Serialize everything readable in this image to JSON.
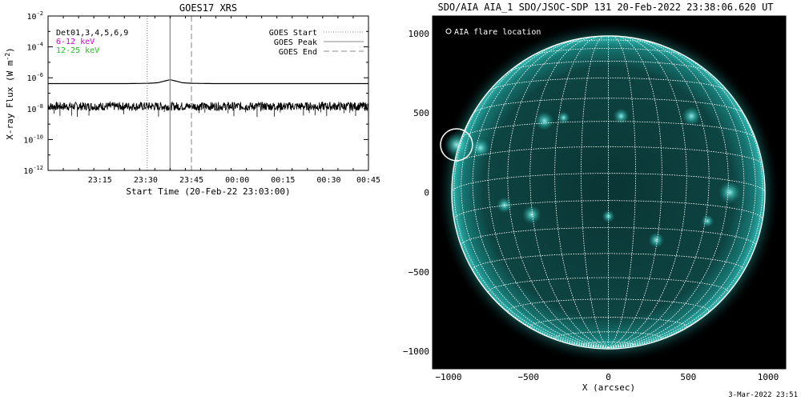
{
  "chart_data": [
    {
      "type": "line",
      "title": "GOES17 XRS",
      "xlabel": "Start Time (20-Feb-22 23:03:00)",
      "ylabel": "X-ray Flux (W m",
      "ylabel_superscript": "-2",
      "ylabel_close": ")",
      "yscale": "log",
      "ylim_exponents": [
        -12,
        -2
      ],
      "y_tick_exponents": [
        -12,
        -10,
        -8,
        -6,
        -4,
        -2
      ],
      "y_tick_base": "10",
      "xlim_minutes": [
        -5,
        100
      ],
      "x_tick_minutes": [
        12,
        27,
        42,
        57,
        72,
        87,
        102
      ],
      "x_tick_labels": [
        "23:15",
        "23:30",
        "23:45",
        "00:00",
        "00:15",
        "00:30",
        "00:45"
      ],
      "channel_legend": [
        {
          "label": "Det01,3,4,5,6,9",
          "color": "#000000"
        },
        {
          "label": "6-12 keV",
          "color": "#d400d4"
        },
        {
          "label": "12-25 keV",
          "color": "#20c020"
        }
      ],
      "marker_legend": [
        {
          "label": "GOES Start",
          "style": "dotted"
        },
        {
          "label": "GOES Peak",
          "style": "solid"
        },
        {
          "label": "GOES End",
          "style": "dashed"
        }
      ],
      "markers_minutes": {
        "start": 27.5,
        "peak": 35.0,
        "end": 42.0
      },
      "series": [
        {
          "name": "",
          "color": "#000000",
          "log10_values": [
            [
              -5,
              -6.38
            ],
            [
              10,
              -6.38
            ],
            [
              20,
              -6.38
            ],
            [
              28,
              -6.36
            ],
            [
              31,
              -6.32
            ],
            [
              33,
              -6.22
            ],
            [
              35,
              -6.13
            ],
            [
              37,
              -6.22
            ],
            [
              39,
              -6.32
            ],
            [
              42,
              -6.36
            ],
            [
              50,
              -6.38
            ],
            [
              70,
              -6.38
            ],
            [
              100,
              -6.38
            ]
          ]
        },
        {
          "name": "",
          "color": "#000000",
          "noisy": true,
          "log10_values": [
            [
              -5,
              -7.85
            ],
            [
              20,
              -7.85
            ],
            [
              50,
              -7.85
            ],
            [
              100,
              -7.85
            ]
          ]
        }
      ]
    },
    {
      "type": "image",
      "title": "SDO/AIA AIA_1 SDO/JSOC-SDP 131 20-Feb-2022 23:38:06.620 UT",
      "xlabel": "X (arcsec)",
      "ylabel": "",
      "xlim": [
        -1100,
        1110
      ],
      "ylim": [
        -1110,
        1110
      ],
      "x_ticks": [
        -1000,
        -500,
        0,
        500,
        1000
      ],
      "y_ticks": [
        -1000,
        -500,
        0,
        500,
        1000
      ],
      "x_tick_labels": [
        "−1000",
        "−500",
        "0",
        "500",
        "1000"
      ],
      "y_tick_labels": [
        "−1000",
        "−500",
        "0",
        "500",
        "1000"
      ],
      "legend_label": "AIA flare location",
      "solar_radius": 980,
      "flare_location": [
        -950,
        300
      ],
      "flare_circle_radius": 100,
      "disk_color": "#0b3c3a",
      "limb_color": "#2fb8b0",
      "background_color": "#000000",
      "grid_color": "#ffffff",
      "bright_regions": [
        [
          -950,
          300,
          80
        ],
        [
          -800,
          280,
          60
        ],
        [
          -400,
          450,
          60
        ],
        [
          80,
          480,
          50
        ],
        [
          520,
          480,
          60
        ],
        [
          760,
          0,
          70
        ],
        [
          -480,
          -140,
          60
        ],
        [
          -650,
          -80,
          50
        ],
        [
          300,
          -300,
          50
        ],
        [
          0,
          -150,
          40
        ],
        [
          -280,
          470,
          40
        ],
        [
          620,
          -180,
          40
        ]
      ]
    }
  ],
  "footer": {
    "timestamp": "3-Mar-2022 23:51"
  }
}
